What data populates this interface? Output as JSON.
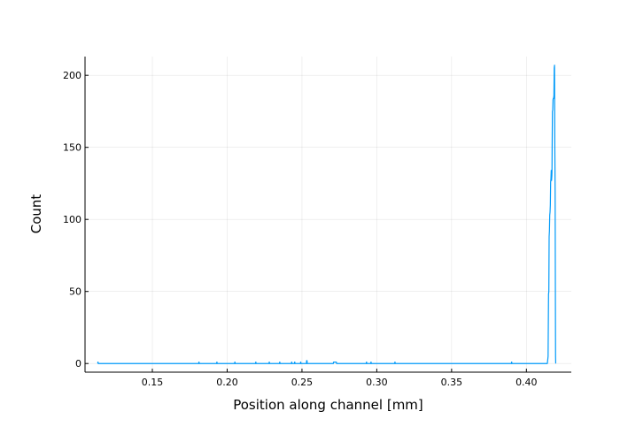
{
  "chart_data": {
    "type": "line",
    "title": "",
    "xlabel": "Position along channel [mm]",
    "ylabel": "Count",
    "xlim": [
      0.105,
      0.43
    ],
    "ylim": [
      -6,
      213
    ],
    "grid": true,
    "legend": "none",
    "x_ticks": [
      0.15,
      0.2,
      0.25,
      0.3,
      0.35,
      0.4
    ],
    "x_tick_labels": [
      "0.15",
      "0.20",
      "0.25",
      "0.30",
      "0.35",
      "0.40"
    ],
    "y_ticks": [
      0,
      50,
      100,
      150,
      200
    ],
    "y_tick_labels": [
      "0",
      "50",
      "100",
      "150",
      "200"
    ],
    "series": [
      {
        "color": "#009af9",
        "x": [
          0.1135,
          0.1136,
          0.1137,
          0.1138,
          0.181,
          0.1811,
          0.1812,
          0.1813,
          0.193,
          0.1931,
          0.1932,
          0.1933,
          0.205,
          0.2051,
          0.2052,
          0.2053,
          0.219,
          0.2191,
          0.2192,
          0.2193,
          0.228,
          0.2281,
          0.2282,
          0.2283,
          0.235,
          0.2351,
          0.2352,
          0.2353,
          0.243,
          0.2431,
          0.2432,
          0.2433,
          0.245,
          0.2451,
          0.2452,
          0.2453,
          0.249,
          0.2491,
          0.2492,
          0.2493,
          0.253,
          0.2531,
          0.2534,
          0.2535,
          0.271,
          0.2711,
          0.273,
          0.2731,
          0.293,
          0.2931,
          0.2932,
          0.2933,
          0.296,
          0.2961,
          0.2962,
          0.2963,
          0.312,
          0.3121,
          0.3122,
          0.3123,
          0.39,
          0.3901,
          0.3902,
          0.3903,
          0.414,
          0.4145,
          0.4148,
          0.415,
          0.4152,
          0.4154,
          0.4156,
          0.4158,
          0.416,
          0.4162,
          0.4164,
          0.4166,
          0.4168,
          0.417,
          0.4171,
          0.4172,
          0.4174,
          0.4176,
          0.4178,
          0.418,
          0.4182,
          0.4184,
          0.4186,
          0.4188,
          0.419,
          0.4192,
          0.4194,
          0.4195,
          0.4196
        ],
        "y": [
          0,
          1,
          1,
          0,
          0,
          1,
          1,
          0,
          0,
          1,
          1,
          0,
          0,
          1,
          1,
          0,
          0,
          1,
          1,
          0,
          0,
          1,
          1,
          0,
          0,
          1,
          1,
          0,
          0,
          1,
          1,
          0,
          0,
          1,
          1,
          0,
          0,
          1,
          1,
          0,
          0,
          2,
          2,
          0,
          0,
          1,
          1,
          0,
          0,
          1,
          1,
          0,
          0,
          1,
          1,
          0,
          0,
          1,
          1,
          0,
          0,
          1,
          1,
          0,
          0,
          5,
          48,
          50,
          88,
          92,
          103,
          105,
          110,
          126,
          128,
          134,
          127,
          130,
          133,
          150,
          175,
          176,
          183,
          184,
          184,
          186,
          205,
          207,
          150,
          120,
          40,
          5,
          0
        ]
      }
    ]
  }
}
